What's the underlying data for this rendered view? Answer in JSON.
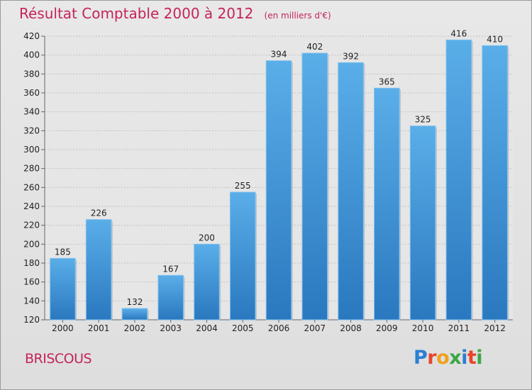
{
  "header": {
    "title": "Résultat Comptable 2000 à 2012",
    "subtitle": "(en milliers d'€)"
  },
  "footer": {
    "commune": "BRISCOUS",
    "logo": "Proxiti"
  },
  "colors": {
    "accent": "#c4245a",
    "bar_light": "#5aaee8",
    "bar_dark": "#2a78bf",
    "logo": [
      "#2a7fd4",
      "#e8442a",
      "#f0a11c",
      "#3aa845",
      "#2a7fd4",
      "#e8442a",
      "#3aa845"
    ]
  },
  "chart_data": {
    "type": "bar",
    "title": "Résultat Comptable 2000 à 2012",
    "subtitle": "(en milliers d'€)",
    "categories": [
      "2000",
      "2001",
      "2002",
      "2003",
      "2004",
      "2005",
      "2006",
      "2007",
      "2008",
      "2009",
      "2010",
      "2011",
      "2012"
    ],
    "values": [
      185,
      226,
      132,
      167,
      200,
      255,
      394,
      402,
      392,
      365,
      325,
      416,
      410
    ],
    "ylim": [
      120,
      420
    ],
    "yticks": [
      120,
      140,
      160,
      180,
      200,
      220,
      240,
      260,
      280,
      300,
      320,
      340,
      360,
      380,
      400,
      420
    ],
    "grid": true,
    "data_labels": true
  }
}
